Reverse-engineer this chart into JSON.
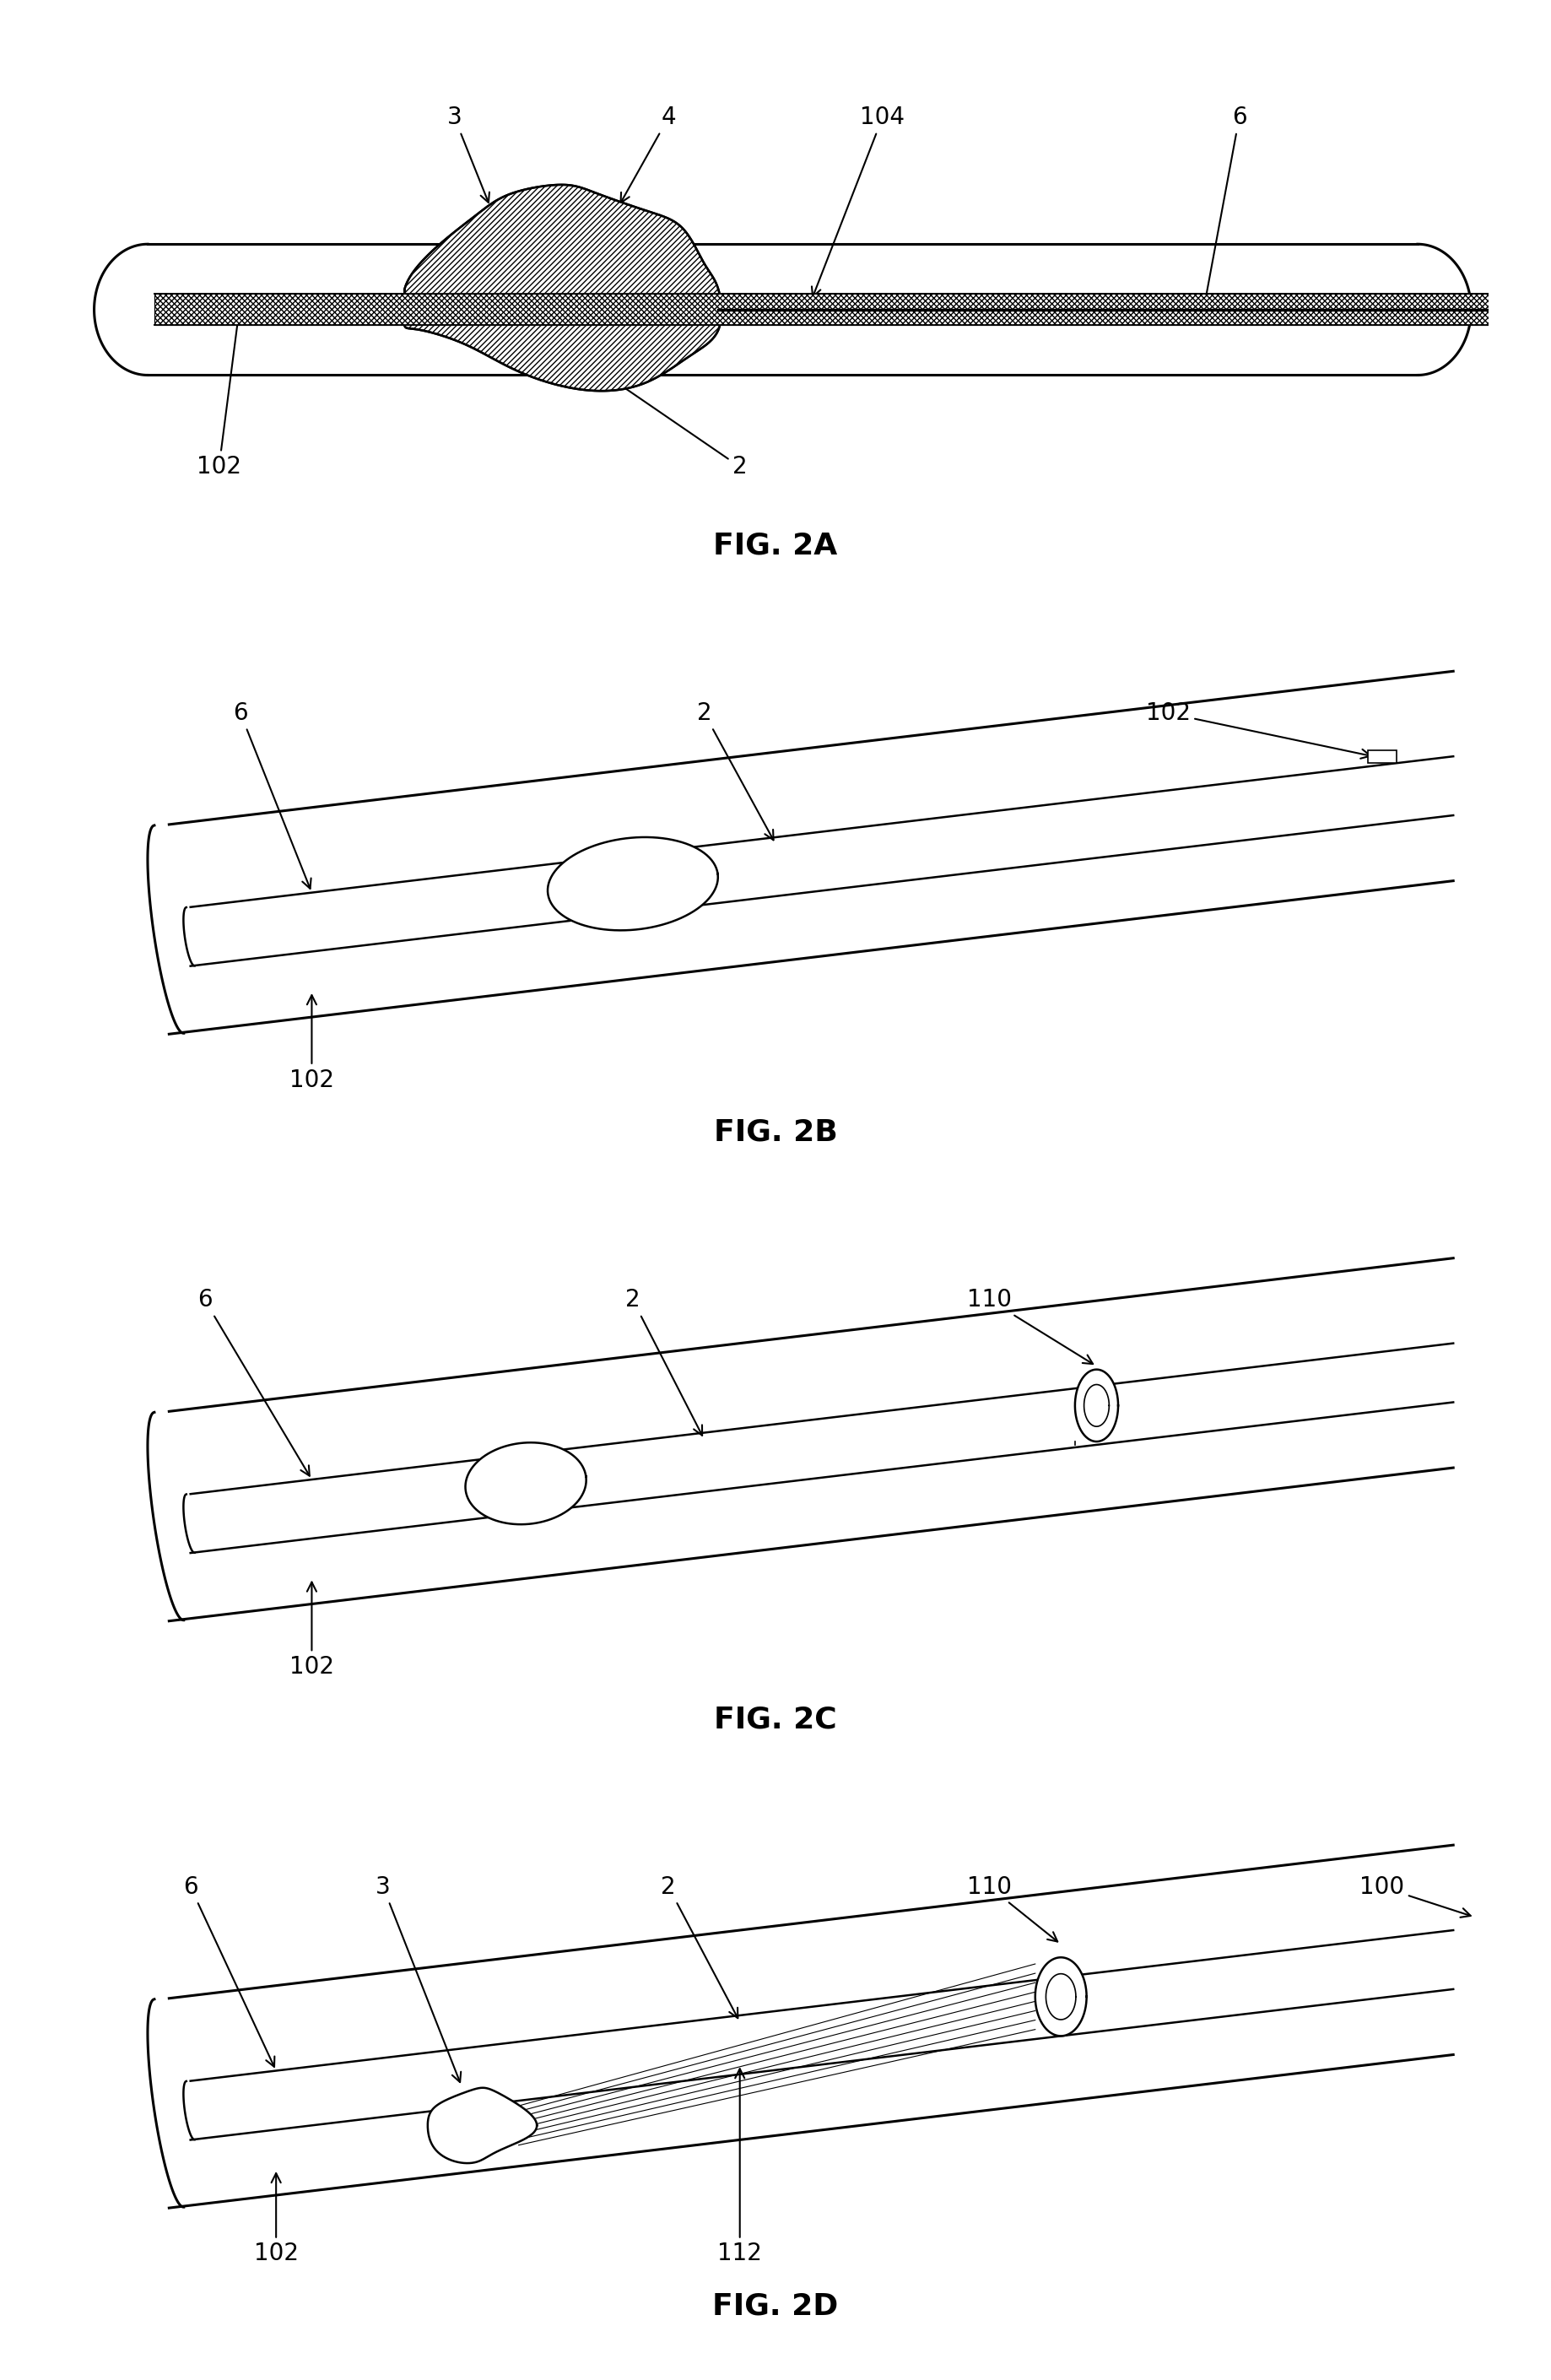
{
  "bg_color": "#ffffff",
  "lc": "#000000",
  "lw_vessel": 2.2,
  "lw_catheter": 1.8,
  "lw_detail": 1.2,
  "fig_labels": [
    "FIG. 2A",
    "FIG. 2B",
    "FIG. 2C",
    "FIG. 2D"
  ],
  "label_fontsize": 26,
  "ann_fontsize": 20,
  "fig_width": 18.38,
  "fig_height": 28.2,
  "slope": 0.13
}
